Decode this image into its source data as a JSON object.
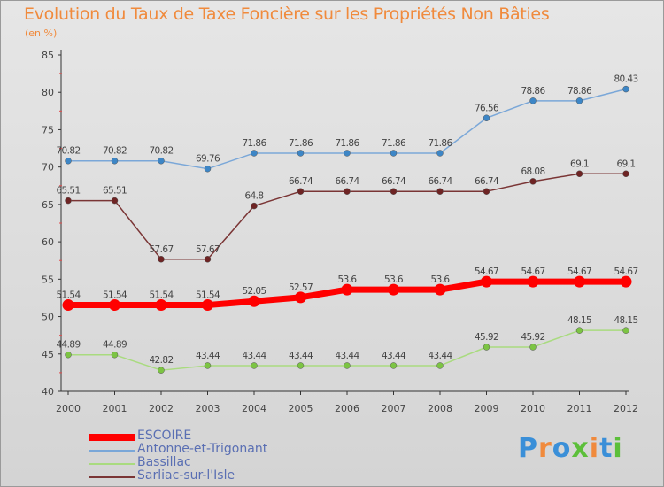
{
  "title": "Evolution du Taux de Taxe Foncière sur les Propriétés Non Bâties",
  "unit": "(en %)",
  "brand": {
    "text": "Proxiti",
    "colors": [
      "#3a8fd8",
      "#f08a3c",
      "#3a8fd8",
      "#5cbf3a",
      "#f08a3c",
      "#3a8fd8",
      "#5cbf3a"
    ]
  },
  "chart_data": {
    "type": "line",
    "x": [
      "2000",
      "2001",
      "2002",
      "2003",
      "2004",
      "2005",
      "2006",
      "2007",
      "2008",
      "2009",
      "2010",
      "2011",
      "2012"
    ],
    "ylim": [
      40,
      85
    ],
    "yticks": [
      40,
      45,
      50,
      55,
      60,
      65,
      70,
      75,
      80,
      85
    ],
    "grid": false,
    "legend": "bottom-left",
    "series": [
      {
        "name": "ESCOIRE",
        "color": "#ff0000",
        "marker": "#ff0000",
        "width": 7,
        "values": [
          51.54,
          51.54,
          51.54,
          51.54,
          52.05,
          52.57,
          53.6,
          53.6,
          53.6,
          54.67,
          54.67,
          54.67,
          54.67
        ],
        "labels": [
          "51.54",
          "51.54",
          "51.54",
          "51.54",
          "52.05",
          "52.57",
          "53.6",
          "53.6",
          "53.6",
          "54.67",
          "54.67",
          "54.67",
          "54.67"
        ]
      },
      {
        "name": "Antonne-et-Trigonant",
        "color": "#7aa7d8",
        "marker": "#3d86c6",
        "width": 1.5,
        "values": [
          70.82,
          70.82,
          70.82,
          69.76,
          71.86,
          71.86,
          71.86,
          71.86,
          71.86,
          76.56,
          78.86,
          78.86,
          80.43
        ],
        "labels": [
          "70.82",
          "70.82",
          "70.82",
          "69.76",
          "71.86",
          "71.86",
          "71.86",
          "71.86",
          "71.86",
          "76.56",
          "78.86",
          "78.86",
          "80.43"
        ]
      },
      {
        "name": "Bassillac",
        "color": "#a9db7f",
        "marker": "#7cc443",
        "width": 1.5,
        "values": [
          44.89,
          44.89,
          42.82,
          43.44,
          43.44,
          43.44,
          43.44,
          43.44,
          43.44,
          45.92,
          45.92,
          48.15,
          48.15
        ],
        "labels": [
          "44.89",
          "44.89",
          "42.82",
          "43.44",
          "43.44",
          "43.44",
          "43.44",
          "43.44",
          "43.44",
          "45.92",
          "45.92",
          "48.15",
          "48.15"
        ]
      },
      {
        "name": "Sarliac-sur-l'Isle",
        "color": "#7a3535",
        "marker": "#6e2424",
        "width": 1.5,
        "values": [
          65.51,
          65.51,
          57.67,
          57.67,
          64.8,
          66.74,
          66.74,
          66.74,
          66.74,
          66.74,
          68.08,
          69.1,
          69.1
        ],
        "labels": [
          "65.51",
          "65.51",
          "57.67",
          "57.67",
          "64.8",
          "66.74",
          "66.74",
          "66.74",
          "66.74",
          "66.74",
          "68.08",
          "69.1",
          "69.1"
        ]
      }
    ]
  }
}
